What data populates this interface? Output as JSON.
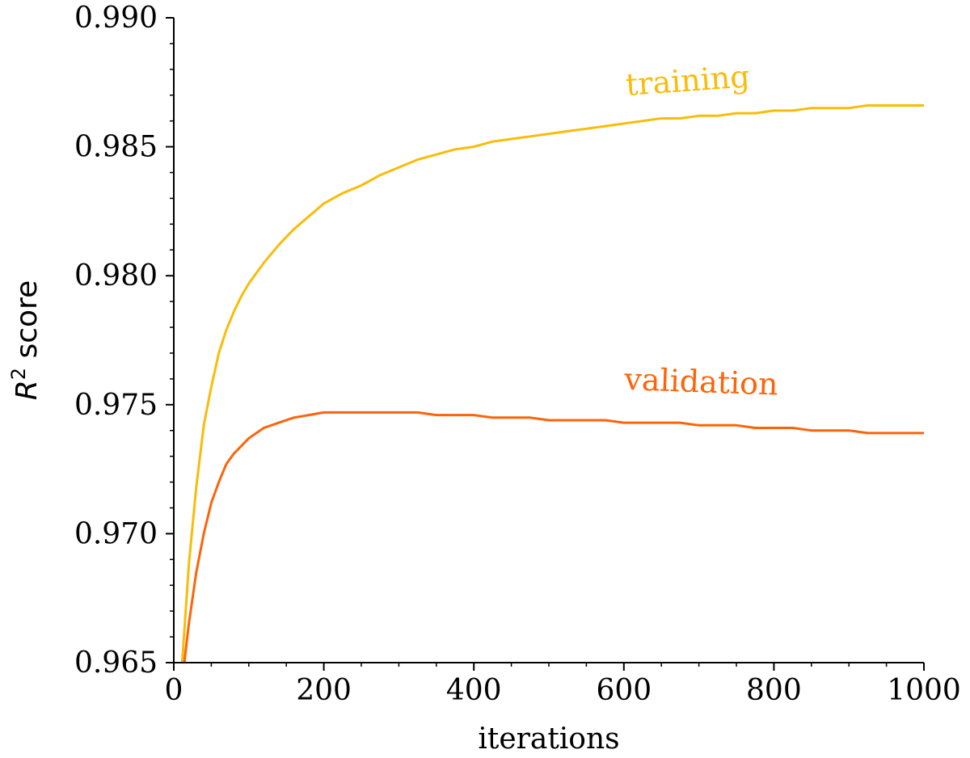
{
  "chart_data": {
    "type": "line",
    "title": "",
    "xlabel": "iterations",
    "ylabel": {
      "symbol": "R",
      "superscript": "2",
      "suffix": " score"
    },
    "xlim": [
      0,
      1000
    ],
    "ylim": [
      0.965,
      0.99
    ],
    "x_ticks": [
      0,
      200,
      400,
      600,
      800,
      1000
    ],
    "x_tick_labels": [
      "0",
      "200",
      "400",
      "600",
      "800",
      "1000"
    ],
    "y_ticks": [
      0.965,
      0.97,
      0.975,
      0.98,
      0.985,
      0.99
    ],
    "y_tick_labels": [
      "0.965",
      "0.970",
      "0.975",
      "0.980",
      "0.985",
      "0.990"
    ],
    "grid": false,
    "legend": "none (series labelled inline)",
    "series": [
      {
        "name": "training",
        "color": "#f9bc08",
        "x": [
          10,
          20,
          30,
          40,
          50,
          60,
          70,
          80,
          90,
          100,
          120,
          140,
          160,
          180,
          200,
          225,
          250,
          275,
          300,
          325,
          350,
          375,
          400,
          425,
          450,
          475,
          500,
          525,
          550,
          575,
          600,
          625,
          650,
          675,
          700,
          725,
          750,
          775,
          800,
          825,
          850,
          875,
          900,
          925,
          950,
          975,
          1000
        ],
        "y": [
          0.9645,
          0.9688,
          0.9718,
          0.9742,
          0.9757,
          0.977,
          0.9779,
          0.9786,
          0.9792,
          0.9797,
          0.9805,
          0.9812,
          0.9818,
          0.9823,
          0.9828,
          0.9832,
          0.9835,
          0.9839,
          0.9842,
          0.9845,
          0.9847,
          0.9849,
          0.985,
          0.9852,
          0.9853,
          0.9854,
          0.9855,
          0.9856,
          0.9857,
          0.9858,
          0.9859,
          0.986,
          0.9861,
          0.9861,
          0.9862,
          0.9862,
          0.9863,
          0.9863,
          0.9864,
          0.9864,
          0.9865,
          0.9865,
          0.9865,
          0.9866,
          0.9866,
          0.9866,
          0.9866
        ],
        "label_text": "training"
      },
      {
        "name": "validation",
        "color": "#ff6309",
        "x": [
          10,
          20,
          30,
          40,
          50,
          60,
          70,
          80,
          90,
          100,
          120,
          140,
          160,
          180,
          200,
          225,
          250,
          275,
          300,
          325,
          350,
          375,
          400,
          425,
          450,
          475,
          500,
          525,
          550,
          575,
          600,
          625,
          650,
          675,
          700,
          725,
          750,
          775,
          800,
          825,
          850,
          875,
          900,
          925,
          950,
          975,
          1000
        ],
        "y": [
          0.964,
          0.9665,
          0.9685,
          0.97,
          0.9712,
          0.972,
          0.9727,
          0.9731,
          0.9734,
          0.9737,
          0.9741,
          0.9743,
          0.9745,
          0.9746,
          0.9747,
          0.9747,
          0.9747,
          0.9747,
          0.9747,
          0.9747,
          0.9746,
          0.9746,
          0.9746,
          0.9745,
          0.9745,
          0.9745,
          0.9744,
          0.9744,
          0.9744,
          0.9744,
          0.9743,
          0.9743,
          0.9743,
          0.9743,
          0.9742,
          0.9742,
          0.9742,
          0.9741,
          0.9741,
          0.9741,
          0.974,
          0.974,
          0.974,
          0.9739,
          0.9739,
          0.9739,
          0.9739
        ],
        "label_text": "validation"
      }
    ]
  }
}
